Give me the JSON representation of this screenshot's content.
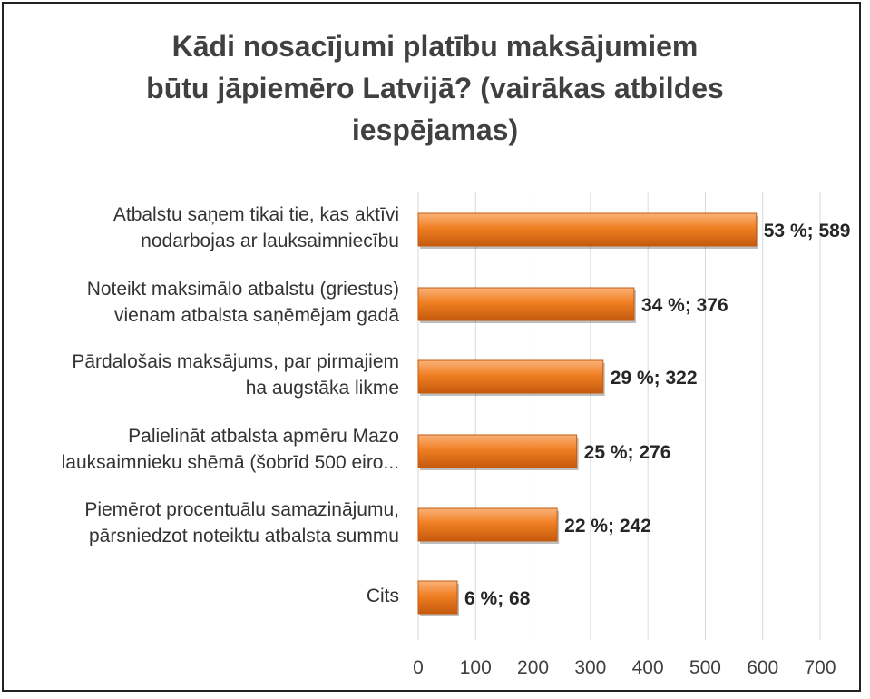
{
  "chart_data": {
    "type": "bar",
    "orientation": "horizontal",
    "title_lines": [
      "Kādi nosacījumi platību maksājumiem",
      "būtu jāpiemēro Latvijā? (vairākas atbildes",
      "iespējamas)"
    ],
    "categories": [
      {
        "lines": [
          "Atbalstu saņem tikai tie, kas aktīvi",
          "nodarbojas ar lauksaimniecību"
        ]
      },
      {
        "lines": [
          "Noteikt maksimālo atbalstu (griestus)",
          "vienam atbalsta saņēmējam gadā"
        ]
      },
      {
        "lines": [
          "Pārdalošais maksājums, par pirmajiem",
          "ha augstāka likme"
        ]
      },
      {
        "lines": [
          "Palielināt atbalsta apmēru Mazo",
          "lauksaimnieku shēmā (šobrīd 500 eiro..."
        ]
      },
      {
        "lines": [
          "Piemērot procentuālu samazinājumu,",
          "pārsniedzot noteiktu atbalsta summu"
        ]
      },
      {
        "lines": [
          "Cits"
        ]
      }
    ],
    "values": [
      589,
      376,
      322,
      276,
      242,
      68
    ],
    "data_labels": [
      "53 %; 589",
      "34 %; 376",
      "29 %; 322",
      "25 %; 276",
      "22 %; 242",
      "6 %; 68"
    ],
    "xlim": [
      0,
      700
    ],
    "xticks": [
      0,
      100,
      200,
      300,
      400,
      500,
      600,
      700
    ],
    "grid": true,
    "colors": {
      "bar": "#f07f22",
      "bar_light": "#fab27a",
      "bar_dark": "#c55a0e",
      "grid": "#d9d9d9",
      "text": "#404040",
      "label": "#262626"
    }
  }
}
